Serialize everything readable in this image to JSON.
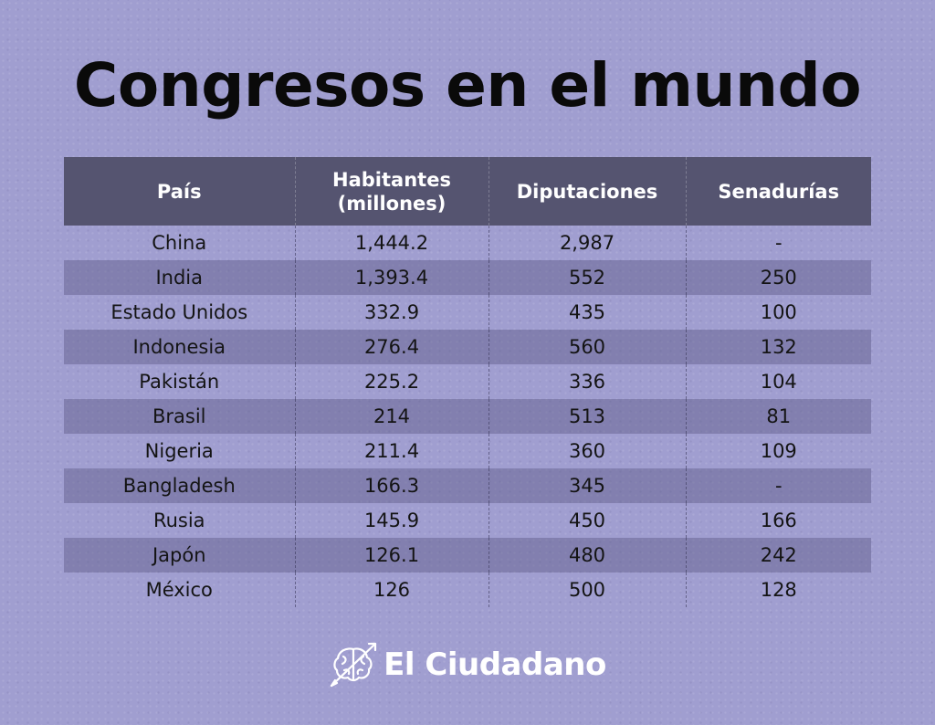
{
  "title": "Congresos en el mundo",
  "chart_data": {
    "type": "table",
    "columns": [
      "País",
      "Habitantes (millones)",
      "Diputaciones",
      "Senadurías"
    ],
    "column_lines": [
      [
        "País"
      ],
      [
        "Habitantes",
        "(millones)"
      ],
      [
        "Diputaciones"
      ],
      [
        "Senadurías"
      ]
    ],
    "rows": [
      [
        "China",
        "1,444.2",
        "2,987",
        "-"
      ],
      [
        "India",
        "1,393.4",
        "552",
        "250"
      ],
      [
        "Estado Unidos",
        "332.9",
        "435",
        "100"
      ],
      [
        "Indonesia",
        "276.4",
        "560",
        "132"
      ],
      [
        "Pakistán",
        "225.2",
        "336",
        "104"
      ],
      [
        "Brasil",
        "214",
        "513",
        "81"
      ],
      [
        "Nigeria",
        "211.4",
        "360",
        "109"
      ],
      [
        "Bangladesh",
        "166.3",
        "345",
        "-"
      ],
      [
        "Rusia",
        "145.9",
        "450",
        "166"
      ],
      [
        "Japón",
        "126.1",
        "480",
        "242"
      ],
      [
        "México",
        "126",
        "500",
        "128"
      ]
    ]
  },
  "brand": "El Ciudadano",
  "brand_icon": "brain-arrow-icon",
  "colors": {
    "background": "#a09ed0",
    "header_bg": "#555470",
    "stripe_bg": "#7f7da8",
    "text": "#141414",
    "title": "#0a0a0a",
    "brand": "#ffffff"
  }
}
